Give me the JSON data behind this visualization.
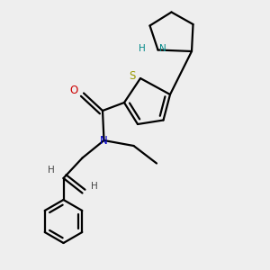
{
  "background_color": "#eeeeee",
  "bond_color": "#000000",
  "S_color": "#999900",
  "N_color": "#0000cc",
  "NH_color": "#008888",
  "O_color": "#cc0000",
  "H_color": "#444444",
  "line_width": 1.6,
  "figsize": [
    3.0,
    3.0
  ],
  "dpi": 100,
  "xlim": [
    0,
    10
  ],
  "ylim": [
    0,
    10
  ]
}
